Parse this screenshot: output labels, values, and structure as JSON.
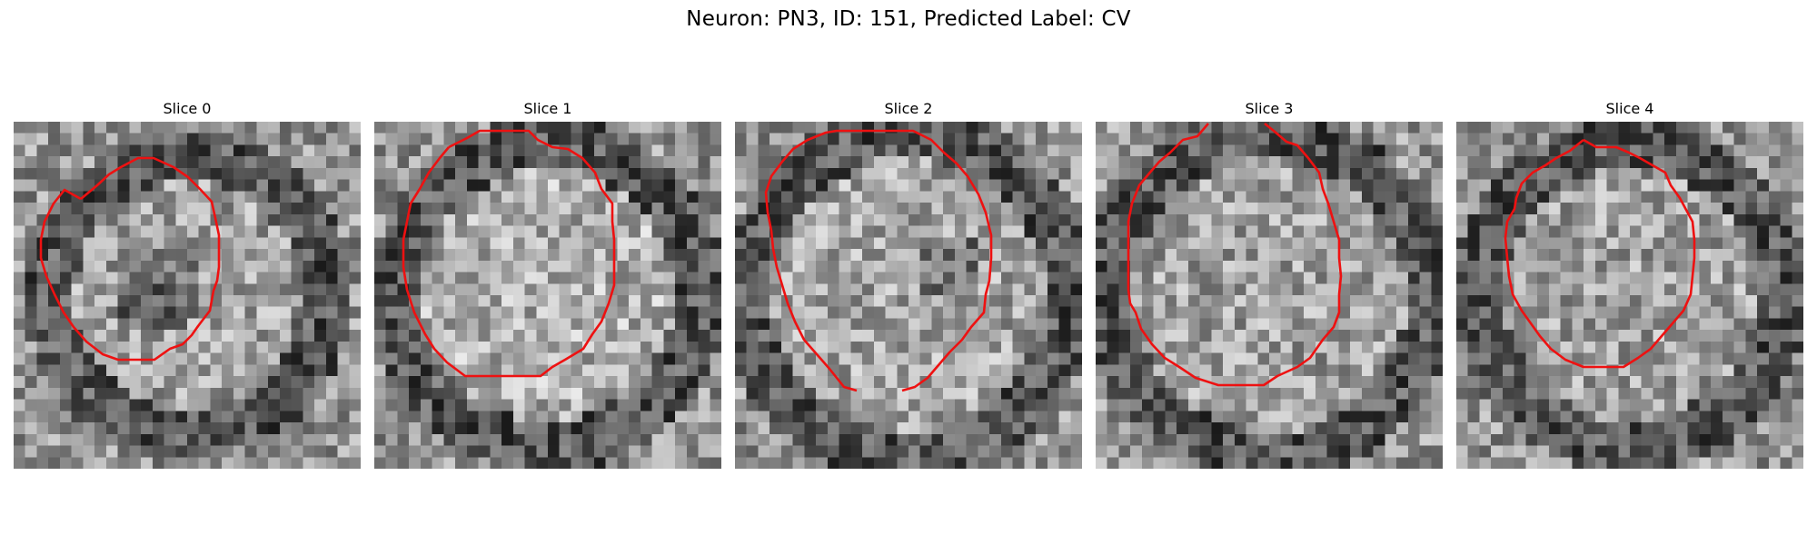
{
  "figure": {
    "title": "Neuron: PN3, ID: 151, Predicted Label: CV"
  },
  "panels": [
    {
      "title": "Slice 0"
    },
    {
      "title": "Slice 1"
    },
    {
      "title": "Slice 2"
    },
    {
      "title": "Slice 3"
    },
    {
      "title": "Slice 4"
    }
  ],
  "colors": {
    "contour": "#ee1111",
    "background": "#ffffff",
    "colormap": "gray"
  }
}
